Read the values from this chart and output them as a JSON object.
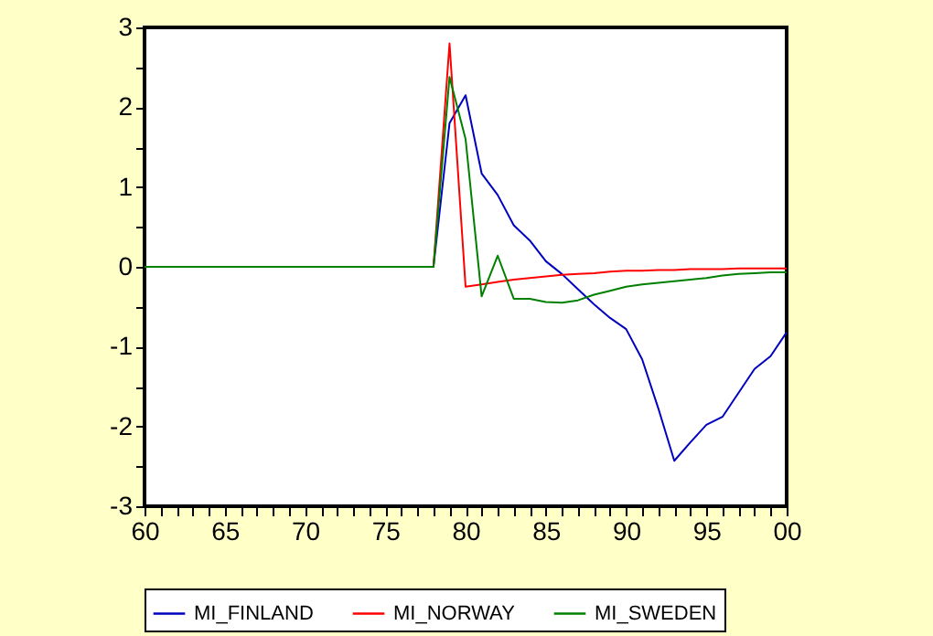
{
  "chart_data": {
    "type": "line",
    "x": [
      1960,
      1961,
      1962,
      1963,
      1964,
      1965,
      1966,
      1967,
      1968,
      1969,
      1970,
      1971,
      1972,
      1973,
      1974,
      1975,
      1976,
      1977,
      1978,
      1979,
      1980,
      1981,
      1982,
      1983,
      1984,
      1985,
      1986,
      1987,
      1988,
      1989,
      1990,
      1991,
      1992,
      1993,
      1994,
      1995,
      1996,
      1997,
      1998,
      1999,
      2000
    ],
    "series": [
      {
        "name": "MI_FINLAND",
        "color": "#0000c0",
        "values": [
          null,
          null,
          null,
          null,
          null,
          null,
          null,
          null,
          null,
          null,
          null,
          null,
          null,
          null,
          null,
          null,
          null,
          0,
          0,
          1.8,
          2.15,
          1.17,
          0.9,
          0.52,
          0.33,
          0.07,
          -0.09,
          -0.28,
          -0.47,
          -0.64,
          -0.78,
          -1.16,
          -1.77,
          -2.43,
          -2.2,
          -1.98,
          -1.88,
          -1.58,
          -1.28,
          -1.12,
          -0.82
        ]
      },
      {
        "name": "MI_NORWAY",
        "color": "#ff0000",
        "values": [
          null,
          null,
          null,
          null,
          null,
          null,
          null,
          null,
          null,
          null,
          null,
          null,
          null,
          null,
          null,
          null,
          null,
          0,
          0,
          2.8,
          -0.25,
          -0.22,
          -0.19,
          -0.16,
          -0.14,
          -0.12,
          -0.1,
          -0.09,
          -0.08,
          -0.06,
          -0.05,
          -0.05,
          -0.04,
          -0.04,
          -0.03,
          -0.03,
          -0.03,
          -0.02,
          -0.02,
          -0.02,
          -0.02
        ]
      },
      {
        "name": "MI_SWEDEN",
        "color": "#008000",
        "values": [
          0,
          0,
          0,
          0,
          0,
          0,
          0,
          0,
          0,
          0,
          0,
          0,
          0,
          0,
          0,
          0,
          0,
          0,
          0,
          2.38,
          1.6,
          -0.37,
          0.14,
          -0.4,
          -0.4,
          -0.44,
          -0.45,
          -0.42,
          -0.35,
          -0.3,
          -0.25,
          -0.22,
          -0.2,
          -0.18,
          -0.16,
          -0.14,
          -0.11,
          -0.09,
          -0.08,
          -0.07,
          -0.07
        ]
      }
    ],
    "xlim": [
      1960,
      2000
    ],
    "xticks": [
      {
        "value": 1960,
        "label": "60"
      },
      {
        "value": 1961,
        "label": null
      },
      {
        "value": 1962,
        "label": null
      },
      {
        "value": 1963,
        "label": null
      },
      {
        "value": 1964,
        "label": null
      },
      {
        "value": 1965,
        "label": "65"
      },
      {
        "value": 1966,
        "label": null
      },
      {
        "value": 1967,
        "label": null
      },
      {
        "value": 1968,
        "label": null
      },
      {
        "value": 1969,
        "label": null
      },
      {
        "value": 1970,
        "label": "70"
      },
      {
        "value": 1971,
        "label": null
      },
      {
        "value": 1972,
        "label": null
      },
      {
        "value": 1973,
        "label": null
      },
      {
        "value": 1974,
        "label": null
      },
      {
        "value": 1975,
        "label": "75"
      },
      {
        "value": 1976,
        "label": null
      },
      {
        "value": 1977,
        "label": null
      },
      {
        "value": 1978,
        "label": null
      },
      {
        "value": 1979,
        "label": null
      },
      {
        "value": 1980,
        "label": "80"
      },
      {
        "value": 1981,
        "label": null
      },
      {
        "value": 1982,
        "label": null
      },
      {
        "value": 1983,
        "label": null
      },
      {
        "value": 1984,
        "label": null
      },
      {
        "value": 1985,
        "label": "85"
      },
      {
        "value": 1986,
        "label": null
      },
      {
        "value": 1987,
        "label": null
      },
      {
        "value": 1988,
        "label": null
      },
      {
        "value": 1989,
        "label": null
      },
      {
        "value": 1990,
        "label": "90"
      },
      {
        "value": 1991,
        "label": null
      },
      {
        "value": 1992,
        "label": null
      },
      {
        "value": 1993,
        "label": null
      },
      {
        "value": 1994,
        "label": null
      },
      {
        "value": 1995,
        "label": "95"
      },
      {
        "value": 1996,
        "label": null
      },
      {
        "value": 1997,
        "label": null
      },
      {
        "value": 1998,
        "label": null
      },
      {
        "value": 1999,
        "label": null
      },
      {
        "value": 2000,
        "label": "00"
      }
    ],
    "ylim": [
      -3,
      3
    ],
    "yticks": [
      -3,
      {
        "value": -2.5,
        "label": null
      },
      -2,
      {
        "value": -1.5,
        "label": null
      },
      -1,
      {
        "value": -0.5,
        "label": null
      },
      0,
      {
        "value": 0.5,
        "label": null
      },
      1,
      {
        "value": 1.5,
        "label": null
      },
      2,
      {
        "value": 2.5,
        "label": null
      },
      3
    ],
    "grid": false,
    "legend": "bottom",
    "marker": "none",
    "line_style": "solid"
  }
}
